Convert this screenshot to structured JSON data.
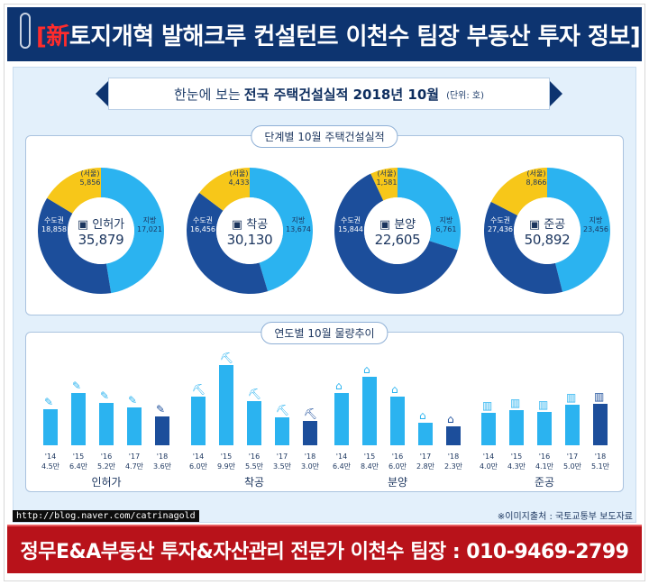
{
  "header": {
    "tag": "[新",
    "title": "토지개혁 발해크루 컨설턴트 이천수 팀장 부동산 투자 정보]"
  },
  "headline": {
    "prefix": "한눈에 보는",
    "bold": "전국 주택건설실적 2018년 10월",
    "unit": "(단위: 호)"
  },
  "section1_label": "단계별 10월 주택건설실적",
  "section2_label": "연도별 10월 물량추이",
  "source_note": "※이미지출처 : 국토교통부 보도자료",
  "blog_url": "http://blog.naver.com/catrinagold",
  "footer": {
    "title": "정무E&A부동산 투자&자산관리 전문가 이천수 팀장 : 010-9469-2799"
  },
  "colors": {
    "dark_blue": "#1c4e9b",
    "light_blue": "#2bb3f0",
    "yellow": "#f7c719",
    "navy": "#0d3470",
    "red": "#b8121a"
  },
  "chart_data": [
    {
      "type": "pie",
      "title": "인허가",
      "total": "35,879",
      "slices": [
        {
          "name": "수도권",
          "value": 18858,
          "label": "18,858"
        },
        {
          "name": "지방",
          "value": 17021,
          "label": "17,021"
        }
      ],
      "seoul": {
        "name": "(서울)",
        "value": 5856,
        "label": "5,856"
      }
    },
    {
      "type": "pie",
      "title": "착공",
      "total": "30,130",
      "slices": [
        {
          "name": "수도권",
          "value": 16456,
          "label": "16,456"
        },
        {
          "name": "지방",
          "value": 13674,
          "label": "13,674"
        }
      ],
      "seoul": {
        "name": "(서울)",
        "value": 4433,
        "label": "4,433"
      }
    },
    {
      "type": "pie",
      "title": "분양",
      "total": "22,605",
      "slices": [
        {
          "name": "수도권",
          "value": 15844,
          "label": "15,844"
        },
        {
          "name": "지방",
          "value": 6761,
          "label": "6,761"
        }
      ],
      "seoul": {
        "name": "(서울)",
        "value": 1581,
        "label": "1,581"
      }
    },
    {
      "type": "pie",
      "title": "준공",
      "total": "50,892",
      "slices": [
        {
          "name": "수도권",
          "value": 27436,
          "label": "27,436"
        },
        {
          "name": "지방",
          "value": 23456,
          "label": "23,456"
        }
      ],
      "seoul": {
        "name": "(서울)",
        "value": 8866,
        "label": "8,866"
      }
    },
    {
      "type": "bar",
      "title": "연도별 10월 물량추이",
      "groups": [
        {
          "name": "인허가",
          "years": [
            "'14",
            "'15",
            "'16",
            "'17",
            "'18"
          ],
          "values": [
            4.5,
            6.4,
            5.2,
            4.7,
            3.6
          ],
          "labels": [
            "4.5만",
            "6.4만",
            "5.2만",
            "4.7만",
            "3.6만"
          ]
        },
        {
          "name": "착공",
          "years": [
            "'14",
            "'15",
            "'16",
            "'17",
            "'18"
          ],
          "values": [
            6.0,
            9.9,
            5.5,
            3.5,
            3.0
          ],
          "labels": [
            "6.0만",
            "9.9만",
            "5.5만",
            "3.5만",
            "3.0만"
          ]
        },
        {
          "name": "분양",
          "years": [
            "'14",
            "'15",
            "'16",
            "'17",
            "'18"
          ],
          "values": [
            6.4,
            8.4,
            6.0,
            2.8,
            2.3
          ],
          "labels": [
            "6.4만",
            "8.4만",
            "6.0만",
            "2.8만",
            "2.3만"
          ]
        },
        {
          "name": "준공",
          "years": [
            "'14",
            "'15",
            "'16",
            "'17",
            "'18"
          ],
          "values": [
            4.0,
            4.3,
            4.1,
            5.0,
            5.1
          ],
          "labels": [
            "4.0만",
            "4.3만",
            "4.1만",
            "5.0만",
            "5.1만"
          ]
        }
      ]
    }
  ]
}
